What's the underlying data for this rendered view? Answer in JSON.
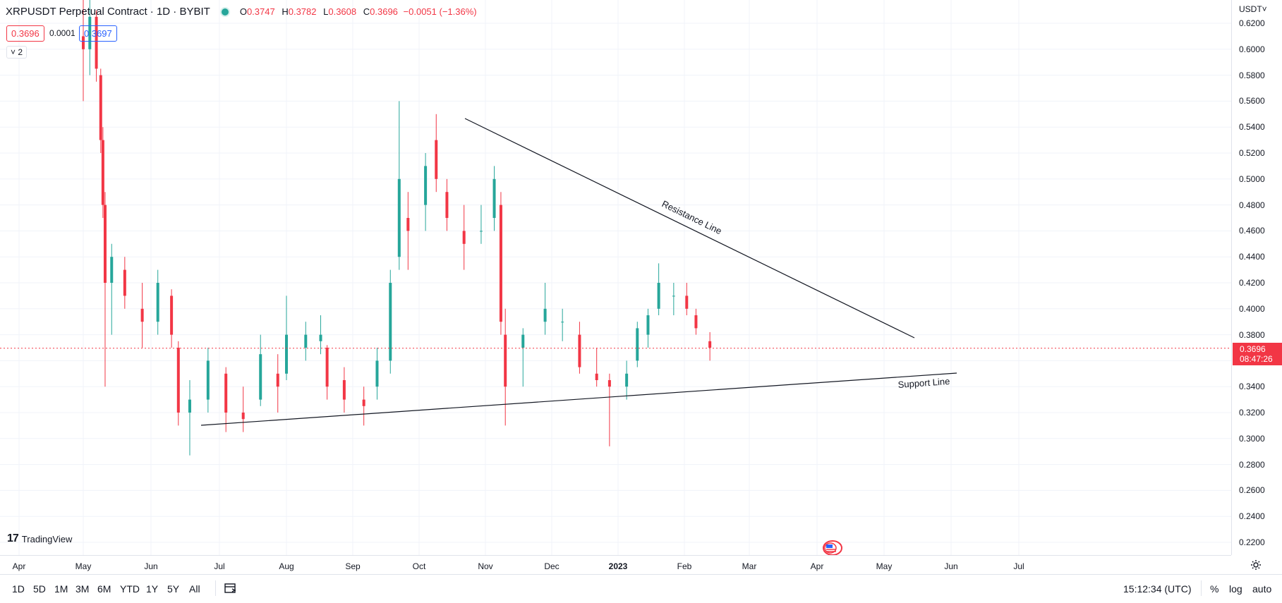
{
  "header": {
    "symbol": "XRPUSDT Perpetual Contract · 1D · BYBIT",
    "status_color": "#26a69a",
    "ohlc": {
      "o_label": "O",
      "o": "0.3747",
      "h_label": "H",
      "h": "0.3782",
      "l_label": "L",
      "l": "0.3608",
      "c_label": "C",
      "c": "0.3696",
      "change": "−0.0051 (−1.36%)"
    },
    "bid": "0.3696",
    "spread": "0.0001",
    "ask": "0.3697",
    "indicators_toggle": "˅ 2"
  },
  "price_axis": {
    "currency": "USDT˅",
    "ticks": [
      "0.6200",
      "0.6000",
      "0.5800",
      "0.5600",
      "0.5400",
      "0.5200",
      "0.5000",
      "0.4800",
      "0.4600",
      "0.4400",
      "0.4200",
      "0.4000",
      "0.3800",
      "0.3600",
      "0.3400",
      "0.3200",
      "0.3000",
      "0.2800",
      "0.2600",
      "0.2400",
      "0.2200"
    ],
    "last_price": "0.3696",
    "countdown": "08:47:26",
    "last_price_color": "#f23645"
  },
  "time_axis": {
    "labels": [
      "Apr",
      "May",
      "Jun",
      "Jul",
      "Aug",
      "Sep",
      "Oct",
      "Nov",
      "Dec",
      "2023",
      "Feb",
      "Mar",
      "Apr",
      "May",
      "Jun",
      "Jul"
    ],
    "bold_label": "2023"
  },
  "branding": {
    "logo": "TradingView"
  },
  "drawings": {
    "resistance_label": "Resistance Line",
    "support_label": "Support Line"
  },
  "bottom_bar": {
    "ranges": [
      "1D",
      "5D",
      "1M",
      "3M",
      "6M",
      "YTD",
      "1Y",
      "5Y",
      "All"
    ],
    "clock": "15:12:34 (UTC)",
    "percent": "%",
    "log": "log",
    "auto": "auto"
  },
  "colors": {
    "up": "#26a69a",
    "down": "#f23645",
    "grid": "#f0f3fa",
    "line": "#131722"
  },
  "chart_data": {
    "type": "candlestick",
    "title": "XRPUSDT Perpetual Contract · 1D · BYBIT",
    "ylim": [
      0.21,
      0.625
    ],
    "series": [
      {
        "date": "2022-05-01",
        "o": 0.61,
        "h": 0.64,
        "l": 0.56,
        "c": 0.6
      },
      {
        "date": "2022-05-04",
        "o": 0.6,
        "h": 0.64,
        "l": 0.58,
        "c": 0.625
      },
      {
        "date": "2022-05-07",
        "o": 0.625,
        "h": 0.63,
        "l": 0.575,
        "c": 0.585
      },
      {
        "date": "2022-05-09",
        "o": 0.58,
        "h": 0.585,
        "l": 0.52,
        "c": 0.53
      },
      {
        "date": "2022-05-10",
        "o": 0.53,
        "h": 0.54,
        "l": 0.47,
        "c": 0.48
      },
      {
        "date": "2022-05-11",
        "o": 0.48,
        "h": 0.49,
        "l": 0.34,
        "c": 0.42
      },
      {
        "date": "2022-05-14",
        "o": 0.42,
        "h": 0.45,
        "l": 0.38,
        "c": 0.44
      },
      {
        "date": "2022-05-20",
        "o": 0.43,
        "h": 0.44,
        "l": 0.4,
        "c": 0.41
      },
      {
        "date": "2022-05-28",
        "o": 0.4,
        "h": 0.42,
        "l": 0.37,
        "c": 0.39
      },
      {
        "date": "2022-06-04",
        "o": 0.39,
        "h": 0.43,
        "l": 0.38,
        "c": 0.42
      },
      {
        "date": "2022-06-10",
        "o": 0.41,
        "h": 0.415,
        "l": 0.37,
        "c": 0.38
      },
      {
        "date": "2022-06-13",
        "o": 0.37,
        "h": 0.375,
        "l": 0.31,
        "c": 0.32
      },
      {
        "date": "2022-06-18",
        "o": 0.32,
        "h": 0.345,
        "l": 0.287,
        "c": 0.33
      },
      {
        "date": "2022-06-26",
        "o": 0.33,
        "h": 0.37,
        "l": 0.32,
        "c": 0.36
      },
      {
        "date": "2022-07-04",
        "o": 0.35,
        "h": 0.355,
        "l": 0.305,
        "c": 0.32
      },
      {
        "date": "2022-07-12",
        "o": 0.32,
        "h": 0.34,
        "l": 0.305,
        "c": 0.315
      },
      {
        "date": "2022-07-20",
        "o": 0.33,
        "h": 0.38,
        "l": 0.325,
        "c": 0.365
      },
      {
        "date": "2022-07-28",
        "o": 0.35,
        "h": 0.365,
        "l": 0.32,
        "c": 0.34
      },
      {
        "date": "2022-08-01",
        "o": 0.35,
        "h": 0.41,
        "l": 0.345,
        "c": 0.38
      },
      {
        "date": "2022-08-10",
        "o": 0.37,
        "h": 0.39,
        "l": 0.36,
        "c": 0.38
      },
      {
        "date": "2022-08-17",
        "o": 0.375,
        "h": 0.395,
        "l": 0.365,
        "c": 0.38
      },
      {
        "date": "2022-08-20",
        "o": 0.37,
        "h": 0.372,
        "l": 0.33,
        "c": 0.34
      },
      {
        "date": "2022-08-28",
        "o": 0.345,
        "h": 0.355,
        "l": 0.32,
        "c": 0.33
      },
      {
        "date": "2022-09-06",
        "o": 0.33,
        "h": 0.34,
        "l": 0.31,
        "c": 0.325
      },
      {
        "date": "2022-09-12",
        "o": 0.34,
        "h": 0.37,
        "l": 0.33,
        "c": 0.36
      },
      {
        "date": "2022-09-18",
        "o": 0.36,
        "h": 0.43,
        "l": 0.35,
        "c": 0.42
      },
      {
        "date": "2022-09-22",
        "o": 0.44,
        "h": 0.56,
        "l": 0.43,
        "c": 0.5
      },
      {
        "date": "2022-09-26",
        "o": 0.47,
        "h": 0.49,
        "l": 0.43,
        "c": 0.46
      },
      {
        "date": "2022-10-04",
        "o": 0.48,
        "h": 0.52,
        "l": 0.46,
        "c": 0.51
      },
      {
        "date": "2022-10-09",
        "o": 0.53,
        "h": 0.55,
        "l": 0.49,
        "c": 0.5
      },
      {
        "date": "2022-10-14",
        "o": 0.49,
        "h": 0.5,
        "l": 0.46,
        "c": 0.47
      },
      {
        "date": "2022-10-22",
        "o": 0.46,
        "h": 0.48,
        "l": 0.43,
        "c": 0.45
      },
      {
        "date": "2022-10-30",
        "o": 0.46,
        "h": 0.48,
        "l": 0.45,
        "c": 0.46
      },
      {
        "date": "2022-11-05",
        "o": 0.47,
        "h": 0.51,
        "l": 0.46,
        "c": 0.5
      },
      {
        "date": "2022-11-08",
        "o": 0.48,
        "h": 0.49,
        "l": 0.38,
        "c": 0.39
      },
      {
        "date": "2022-11-10",
        "o": 0.38,
        "h": 0.4,
        "l": 0.31,
        "c": 0.34
      },
      {
        "date": "2022-11-18",
        "o": 0.37,
        "h": 0.385,
        "l": 0.34,
        "c": 0.38
      },
      {
        "date": "2022-11-28",
        "o": 0.39,
        "h": 0.42,
        "l": 0.38,
        "c": 0.4
      },
      {
        "date": "2022-12-06",
        "o": 0.39,
        "h": 0.4,
        "l": 0.375,
        "c": 0.39
      },
      {
        "date": "2022-12-14",
        "o": 0.38,
        "h": 0.39,
        "l": 0.35,
        "c": 0.355
      },
      {
        "date": "2022-12-22",
        "o": 0.35,
        "h": 0.37,
        "l": 0.34,
        "c": 0.345
      },
      {
        "date": "2022-12-28",
        "o": 0.345,
        "h": 0.35,
        "l": 0.294,
        "c": 0.34
      },
      {
        "date": "2023-01-05",
        "o": 0.34,
        "h": 0.36,
        "l": 0.33,
        "c": 0.35
      },
      {
        "date": "2023-01-10",
        "o": 0.36,
        "h": 0.39,
        "l": 0.355,
        "c": 0.385
      },
      {
        "date": "2023-01-15",
        "o": 0.38,
        "h": 0.4,
        "l": 0.37,
        "c": 0.395
      },
      {
        "date": "2023-01-20",
        "o": 0.4,
        "h": 0.435,
        "l": 0.395,
        "c": 0.42
      },
      {
        "date": "2023-01-27",
        "o": 0.41,
        "h": 0.42,
        "l": 0.395,
        "c": 0.41
      },
      {
        "date": "2023-02-02",
        "o": 0.41,
        "h": 0.42,
        "l": 0.395,
        "c": 0.4
      },
      {
        "date": "2023-02-06",
        "o": 0.395,
        "h": 0.4,
        "l": 0.38,
        "c": 0.385
      },
      {
        "date": "2023-02-12",
        "o": 0.375,
        "h": 0.382,
        "l": 0.36,
        "c": 0.37
      }
    ]
  }
}
